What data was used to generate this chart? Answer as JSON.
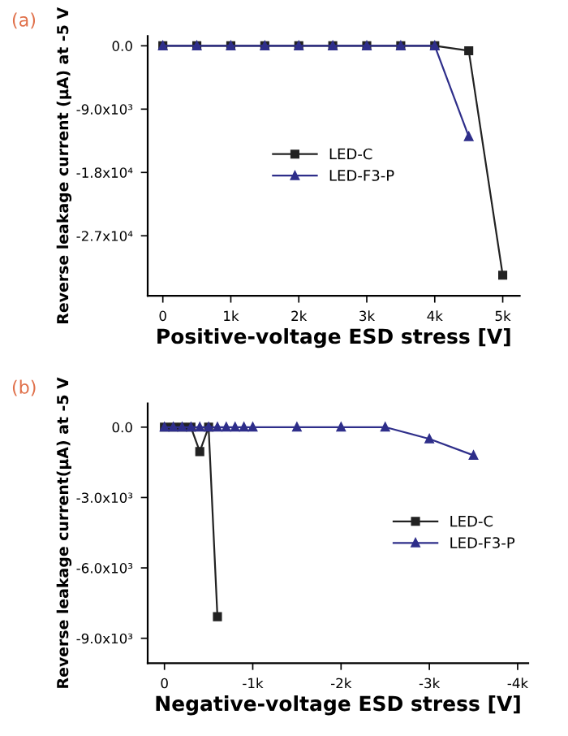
{
  "chart_data": [
    {
      "type": "line",
      "annotations": [
        "(a)"
      ],
      "xlabel": "Positive-voltage ESD stress [V]",
      "ylabel": "Reverse leakage current (μA) at -5 V",
      "xlim": [
        -223,
        5250
      ],
      "ylim": [
        -35540,
        1385
      ],
      "xticks": [
        0,
        {
          "value": 1000,
          "label": "1k"
        },
        {
          "value": 2000,
          "label": "2k"
        },
        {
          "value": 3000,
          "label": "3k"
        },
        {
          "value": 4000,
          "label": "4k"
        },
        {
          "value": 5000,
          "label": "5k"
        }
      ],
      "yticks": [
        {
          "value": 0,
          "label": "0.0"
        },
        {
          "value": -9000,
          "label": "-9.0x10³"
        },
        {
          "value": -18000,
          "label": "-1.8x10⁴"
        },
        {
          "value": -27000,
          "label": "-2.7x10⁴"
        }
      ],
      "legend": "center",
      "grid": false,
      "series": [
        {
          "name": "LED-C",
          "color": "#222222",
          "marker": "square",
          "x": [
            0,
            500,
            1000,
            1500,
            2000,
            2500,
            3000,
            3500,
            4000,
            4500,
            5000
          ],
          "values": [
            0,
            0,
            0,
            0,
            0,
            0,
            0,
            0,
            0,
            -700,
            -32600
          ]
        },
        {
          "name": "LED-F3-P",
          "color": "#2e2e8a",
          "marker": "triangle",
          "x": [
            0,
            500,
            1000,
            1500,
            2000,
            2500,
            3000,
            3500,
            4000,
            4500
          ],
          "values": [
            0,
            0,
            0,
            0,
            0,
            0,
            0,
            0,
            0,
            -12900
          ]
        }
      ]
    },
    {
      "type": "line",
      "annotations": [
        "(b)"
      ],
      "xlabel": "Negative-voltage ESD stress [V]",
      "ylabel": "Reverse leakage current(μA) at -5 V",
      "xlim": [
        190,
        -4120
      ],
      "ylim": [
        -10060,
        1015
      ],
      "xticks": [
        0,
        {
          "value": -1000,
          "label": "-1k"
        },
        {
          "value": -2000,
          "label": "-2k"
        },
        {
          "value": -3000,
          "label": "-3k"
        },
        {
          "value": -4000,
          "label": "-4k"
        }
      ],
      "yticks": [
        {
          "value": 0,
          "label": "0.0"
        },
        {
          "value": -3000,
          "label": "-3.0x10³"
        },
        {
          "value": -6000,
          "label": "-6.0x10³"
        },
        {
          "value": -9000,
          "label": "-9.0x10³"
        }
      ],
      "legend": "center right",
      "grid": false,
      "series": [
        {
          "name": "LED-C",
          "color": "#222222",
          "marker": "square",
          "x": [
            0,
            -100,
            -200,
            -300,
            -400,
            -500,
            -600
          ],
          "values": [
            0,
            0,
            0,
            0,
            -1040,
            0,
            -8080
          ]
        },
        {
          "name": "LED-F3-P",
          "color": "#2e2e8a",
          "marker": "triangle",
          "x": [
            0,
            -100,
            -200,
            -300,
            -400,
            -500,
            -600,
            -700,
            -800,
            -900,
            -1000,
            -1500,
            -2000,
            -2500,
            -3000,
            -3500
          ],
          "values": [
            0,
            0,
            0,
            0,
            0,
            0,
            0,
            0,
            0,
            0,
            0,
            0,
            0,
            0,
            -500,
            -1200
          ]
        }
      ]
    }
  ]
}
